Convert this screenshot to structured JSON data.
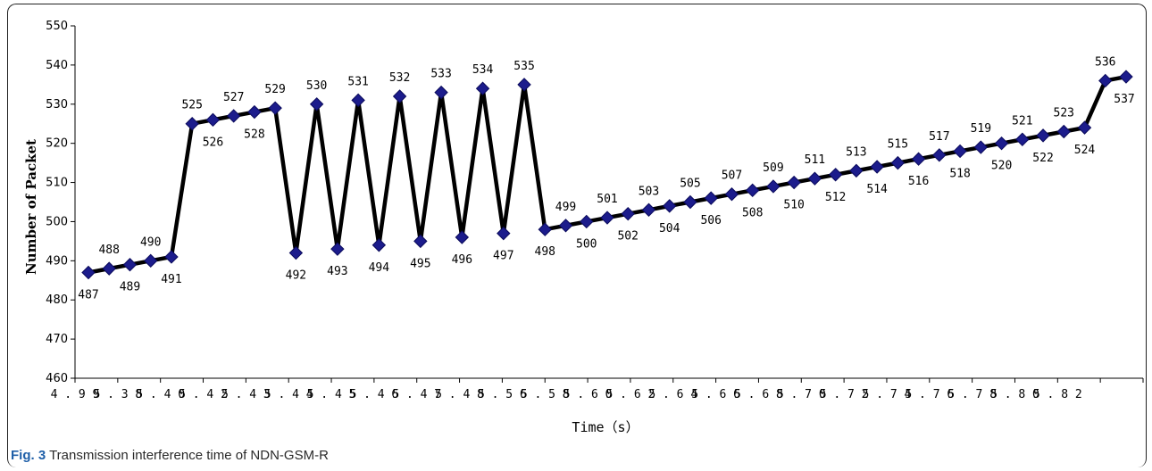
{
  "figure": {
    "label": "Fig. 3",
    "caption": "Transmission interference time of NDN-GSM-R"
  },
  "chart_data": {
    "type": "line",
    "xlabel": "Time（s）",
    "ylabel": "Number of Packet",
    "ylim": [
      460,
      550
    ],
    "yticks": [
      460,
      470,
      480,
      490,
      500,
      510,
      520,
      530,
      540,
      550
    ],
    "x_tick_labels": [
      "4.99",
      "5.38",
      "5.40",
      "5.42",
      "5.43",
      "5.44",
      "5.45",
      "5.46",
      "5.47",
      "5.48",
      "5.56",
      "5.58",
      "5.60",
      "5.62",
      "5.64",
      "5.66",
      "5.68",
      "5.70",
      "5.72",
      "5.74",
      "5.76",
      "5.78",
      "5.80",
      "5.82",
      ""
    ],
    "grid": false,
    "legend": "none",
    "series": [
      {
        "values": [
          487,
          488,
          489,
          490,
          491,
          525,
          526,
          527,
          528,
          529,
          492,
          530,
          493,
          531,
          494,
          532,
          495,
          533,
          496,
          534,
          497,
          535,
          498,
          499,
          500,
          501,
          502,
          503,
          504,
          505,
          506,
          507,
          508,
          509,
          510,
          511,
          512,
          513,
          514,
          515,
          516,
          517,
          518,
          519,
          520,
          521,
          522,
          523,
          524,
          536,
          537
        ],
        "labels": [
          "487",
          "488",
          "489",
          "490",
          "491",
          "525",
          "526",
          "527",
          "528",
          "529",
          "492",
          "530",
          "493",
          "531",
          "494",
          "532",
          "495",
          "533",
          "496",
          "534",
          "497",
          "535",
          "498",
          "499",
          "500",
          "501",
          "502",
          "503",
          "504",
          "505",
          "506",
          "507",
          "508",
          "509",
          "510",
          "511",
          "512",
          "513",
          "514",
          "515",
          "516",
          "517",
          "518",
          "519",
          "520",
          "521",
          "522",
          "523",
          "524",
          "536",
          "537"
        ],
        "label_side": [
          "below",
          "above",
          "below",
          "above",
          "below",
          "above",
          "below",
          "above",
          "below",
          "above",
          "below",
          "above",
          "below",
          "above",
          "below",
          "above",
          "below",
          "above",
          "below",
          "above",
          "below",
          "above",
          "below",
          "above",
          "below",
          "above",
          "below",
          "above",
          "below",
          "above",
          "below",
          "above",
          "below",
          "above",
          "below",
          "above",
          "below",
          "above",
          "below",
          "above",
          "below",
          "above",
          "below",
          "above",
          "below",
          "above",
          "below",
          "above",
          "below",
          "above",
          "below"
        ],
        "line_color": "#000000",
        "marker_color": "#1c1c8c",
        "marker": "diamond"
      }
    ]
  }
}
